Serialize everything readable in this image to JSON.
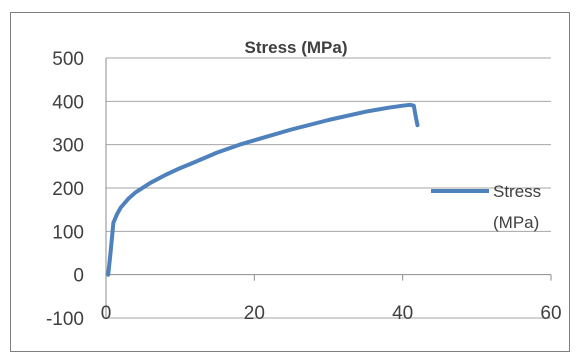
{
  "chart_data": {
    "type": "line",
    "title": "Stress (MPa)",
    "xlabel": "",
    "ylabel": "",
    "xlim": [
      0,
      60
    ],
    "ylim": [
      -100,
      500
    ],
    "x_ticks": [
      0,
      20,
      40,
      60
    ],
    "y_ticks": [
      -100,
      0,
      100,
      200,
      300,
      400,
      500
    ],
    "grid": true,
    "legend": "right",
    "series": [
      {
        "name": "Stress (MPa)",
        "color": "#4f81bd",
        "x": [
          0.3,
          0.6,
          1.0,
          1.5,
          2.0,
          3.0,
          4.0,
          6.0,
          8.0,
          10.0,
          12.0,
          15.0,
          18.0,
          20.0,
          25.0,
          30.0,
          35.0,
          38.0,
          40.0,
          41.0,
          41.5,
          41.7,
          42.0
        ],
        "y": [
          0,
          50,
          120,
          140,
          155,
          175,
          190,
          212,
          230,
          246,
          260,
          282,
          300,
          310,
          335,
          357,
          376,
          385,
          390,
          392,
          390,
          370,
          345
        ]
      }
    ]
  }
}
